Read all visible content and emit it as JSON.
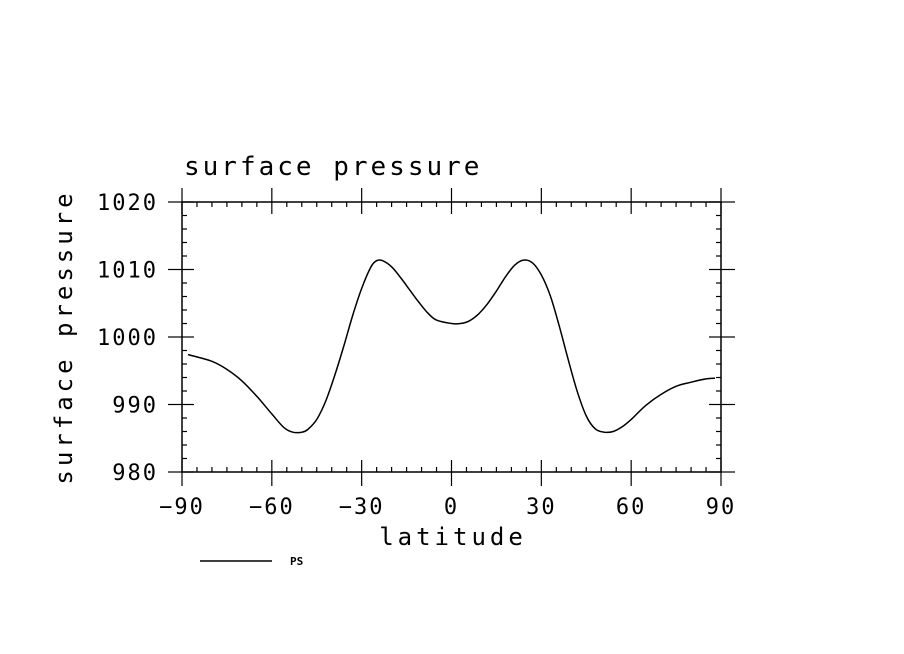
{
  "chart_data": {
    "type": "line",
    "title": "surface pressure",
    "xlabel": "latitude",
    "ylabel": "surface pressure",
    "xlim": [
      -90,
      90
    ],
    "ylim": [
      980,
      1020
    ],
    "x_ticks": [
      "−90",
      "−60",
      "−30",
      "0",
      "30",
      "60",
      "90"
    ],
    "y_ticks": [
      "980",
      "990",
      "1000",
      "1010",
      "1020"
    ],
    "grid": false,
    "legend": "bottom-left",
    "series": [
      {
        "name": "PS",
        "color": "#000000",
        "x": [
          -88,
          -80,
          -75,
          -70,
          -65,
          -60,
          -56,
          -53,
          -50,
          -48,
          -45,
          -42,
          -39,
          -36,
          -33,
          -30,
          -27,
          -25,
          -23,
          -20,
          -17,
          -14,
          -11,
          -8,
          -5,
          0,
          3,
          6,
          9,
          12,
          15,
          18,
          21,
          24,
          27,
          30,
          33,
          36,
          39,
          42,
          45,
          48,
          51,
          54,
          57,
          60,
          65,
          70,
          75,
          80,
          85,
          88
        ],
        "values": [
          997.4,
          996.4,
          995.2,
          993.5,
          991.2,
          988.6,
          986.6,
          985.9,
          985.9,
          986.3,
          987.8,
          990.5,
          994.3,
          998.6,
          1003.2,
          1007.2,
          1010.3,
          1011.3,
          1011.3,
          1010.4,
          1008.8,
          1007.0,
          1005.2,
          1003.6,
          1002.5,
          1002.0,
          1002.0,
          1002.4,
          1003.4,
          1004.9,
          1006.8,
          1008.9,
          1010.6,
          1011.4,
          1011.0,
          1009.2,
          1006.1,
          1001.6,
          996.6,
          991.9,
          988.3,
          986.4,
          985.9,
          986.0,
          986.7,
          987.8,
          989.9,
          991.5,
          992.7,
          993.3,
          993.8,
          993.9
        ]
      }
    ]
  }
}
